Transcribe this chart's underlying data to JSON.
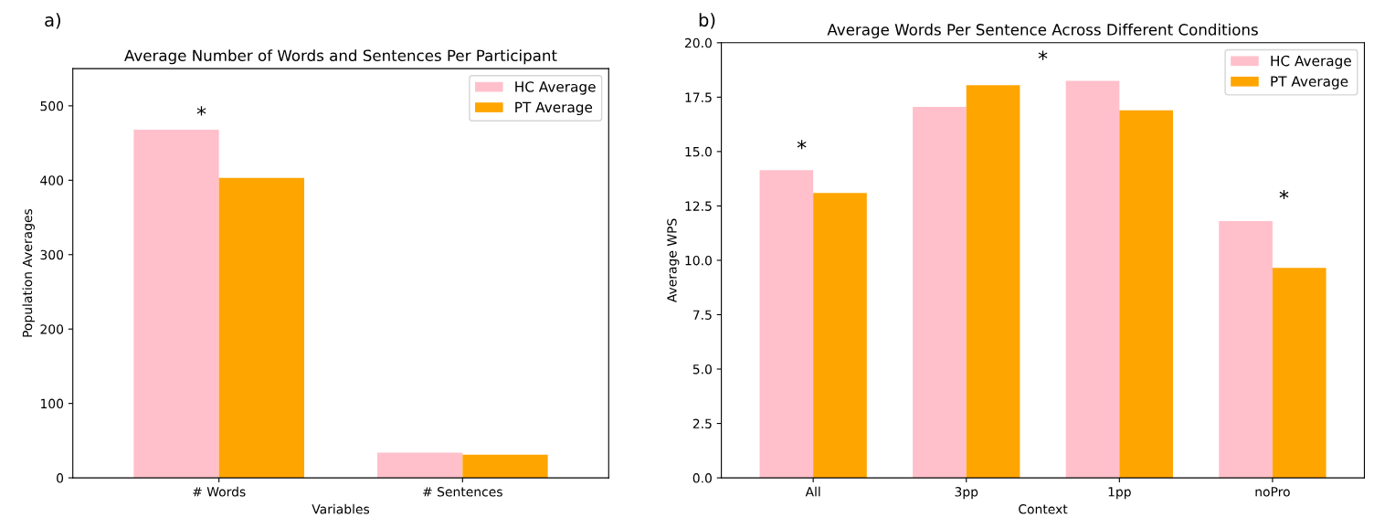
{
  "chart_data": [
    {
      "type": "bar",
      "title": "Average Number of Words and Sentences Per Participant",
      "xlabel": "Variables",
      "ylabel": "Population Averages",
      "categories": [
        "# Words",
        "# Sentences"
      ],
      "series": [
        {
          "name": "HC Average",
          "color": "#ffc0cb",
          "values": [
            468,
            34
          ]
        },
        {
          "name": "PT Average",
          "color": "#ffa500",
          "values": [
            403,
            31
          ]
        }
      ],
      "ylim": [
        0,
        550
      ],
      "yticks": [
        0,
        100,
        200,
        300,
        400,
        500
      ],
      "legend": "top right",
      "grid": false,
      "annotations": [
        "a)",
        "*"
      ]
    },
    {
      "type": "bar",
      "title": "Average Words Per Sentence Across Different Conditions",
      "xlabel": "Context",
      "ylabel": "Average WPS",
      "categories": [
        "All",
        "3pp",
        "1pp",
        "noPro"
      ],
      "series": [
        {
          "name": "HC Average",
          "color": "#ffc0cb",
          "values": [
            14.15,
            17.05,
            18.25,
            11.8
          ]
        },
        {
          "name": "PT Average",
          "color": "#ffa500",
          "values": [
            13.1,
            18.05,
            16.9,
            9.65
          ]
        }
      ],
      "ylim": [
        0,
        20
      ],
      "yticks": [
        {
          "value": 0,
          "label": "0.0"
        },
        {
          "value": 2.5,
          "label": "2.5"
        },
        {
          "value": 5,
          "label": "5.0"
        },
        {
          "value": 7.5,
          "label": "7.5"
        },
        {
          "value": 10,
          "label": "10.0"
        },
        {
          "value": 12.5,
          "label": "12.5"
        },
        {
          "value": 15,
          "label": "15.0"
        },
        {
          "value": 17.5,
          "label": "17.5"
        },
        {
          "value": 20,
          "label": "20.0"
        }
      ],
      "legend": "top right",
      "grid": false,
      "annotations": [
        "b)",
        "*",
        "*",
        "*"
      ]
    }
  ]
}
